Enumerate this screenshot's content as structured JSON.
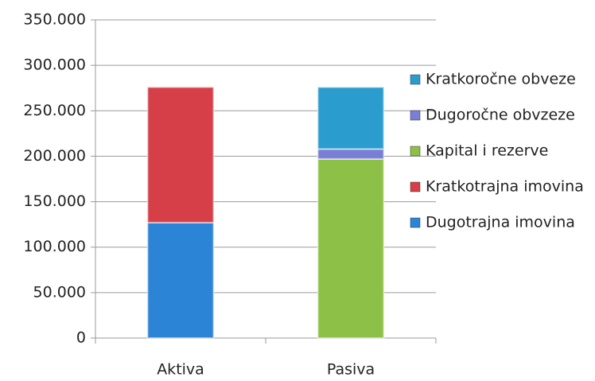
{
  "chart_data": {
    "type": "stacked_bar",
    "categories": [
      "Aktiva",
      "Pasiva"
    ],
    "series": [
      {
        "name": "Dugotrajna imovina",
        "color": "#2b84d6",
        "values": [
          127000,
          null
        ]
      },
      {
        "name": "Kratkotrajna imovina",
        "color": "#d63e48",
        "values": [
          149000,
          null
        ]
      },
      {
        "name": "Kapital i rezerve",
        "color": "#8cc046",
        "values": [
          null,
          197000
        ]
      },
      {
        "name": "Dugoročne obvzeze",
        "color": "#7a7ed4",
        "values": [
          null,
          11000
        ]
      },
      {
        "name": "Kratkoročne obveze",
        "color": "#2a9ccd",
        "values": [
          null,
          68000
        ]
      }
    ],
    "ylim": [
      0,
      350000
    ],
    "yticks": [
      0,
      {
        "value": 50000,
        "label": "50.000"
      },
      {
        "value": 100000,
        "label": "100.000"
      },
      {
        "value": 150000,
        "label": "150.000"
      },
      {
        "value": 200000,
        "label": "200.000"
      },
      {
        "value": 250000,
        "label": "250.000"
      },
      {
        "value": 300000,
        "label": "300.000"
      },
      {
        "value": 350000,
        "label": "350.000"
      }
    ],
    "grid": true,
    "legend": "right"
  }
}
